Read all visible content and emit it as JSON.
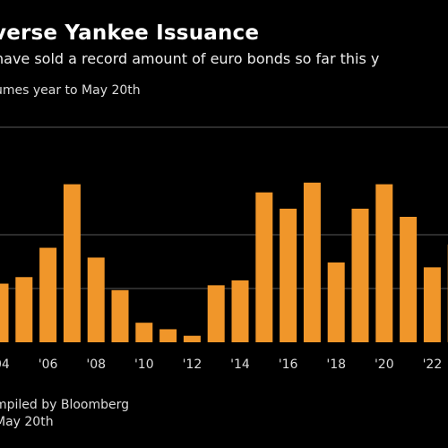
{
  "header": {
    "title": "verse Yankee Issuance",
    "subtitle": "have sold a record amount of euro bonds so far this y",
    "axis_note": "umes year to May 20th"
  },
  "footer": {
    "source_line": "mpiled by Bloomberg",
    "date_line": "May 20th"
  },
  "colors": {
    "background": "#000000",
    "bar": "#f0962a",
    "gridline": "#3a3a3a"
  },
  "chart_data": {
    "type": "bar",
    "categories": [
      "2004",
      "2005",
      "2006",
      "2007",
      "2008",
      "2009",
      "2010",
      "2011",
      "2012",
      "2013",
      "2014",
      "2015",
      "2016",
      "2017",
      "2018",
      "2019",
      "2020",
      "2021",
      "2022",
      "2023"
    ],
    "values": [
      36,
      40,
      58,
      97,
      52,
      32,
      12,
      8,
      4,
      35,
      38,
      92,
      82,
      98,
      49,
      82,
      97,
      77,
      46,
      60
    ],
    "tick_labels": [
      "'04",
      "'06",
      "'08",
      "'10",
      "'12",
      "'14",
      "'16",
      "'18",
      "'20",
      "'22"
    ],
    "tick_categories": [
      "2004",
      "2006",
      "2008",
      "2010",
      "2012",
      "2014",
      "2016",
      "2018",
      "2020",
      "2022"
    ],
    "ylim": [
      0,
      132
    ],
    "gridlines": [
      33,
      66,
      132
    ],
    "grid": true,
    "legend": "none"
  }
}
